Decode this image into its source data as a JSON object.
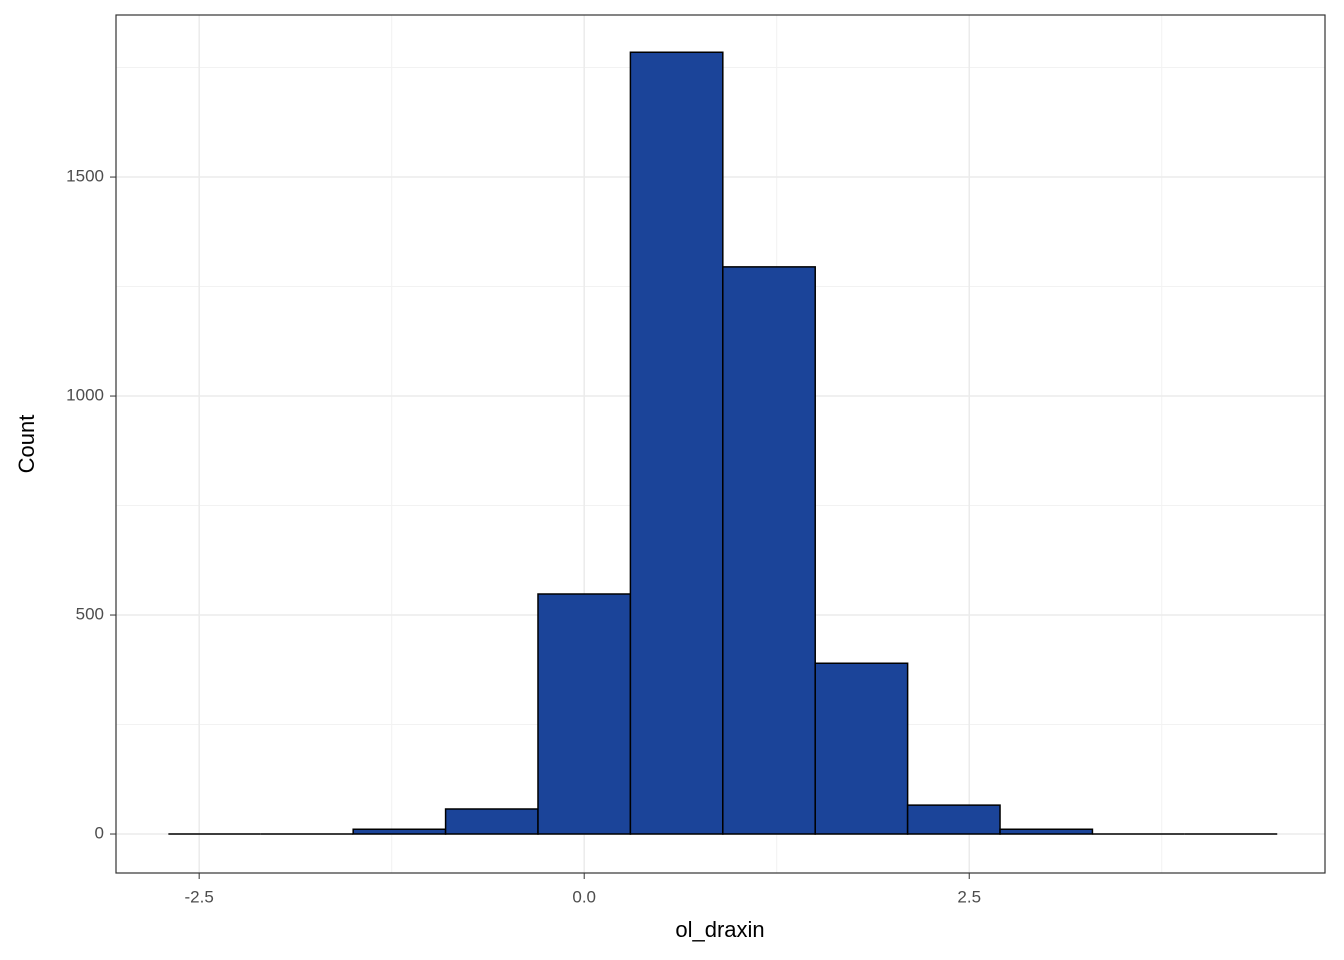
{
  "chart_data": {
    "type": "histogram",
    "x_label": "ol_draxin",
    "y_label": "Count",
    "bins": [
      -2.7,
      -2.1,
      -1.5,
      -0.9,
      -0.3,
      0.3,
      0.9,
      1.5,
      2.1,
      2.7,
      3.3,
      3.9,
      4.5
    ],
    "values": [
      0,
      0,
      11,
      57,
      548,
      1785,
      1295,
      390,
      66,
      11,
      0,
      0
    ],
    "color": "#1b4499",
    "edge_color": "#000000",
    "xlim": [
      -3.04,
      4.81
    ],
    "ylim": [
      -89,
      1870
    ],
    "xticks": [
      -2.5,
      {
        "value": 0,
        "label": "0.0"
      },
      2.5
    ],
    "yticks": [
      0,
      500,
      1000,
      1500
    ],
    "xminorticks": [
      -1.25,
      1.25,
      3.75
    ],
    "yminorticks": [
      250,
      750,
      1250,
      1750
    ],
    "grid": true
  }
}
